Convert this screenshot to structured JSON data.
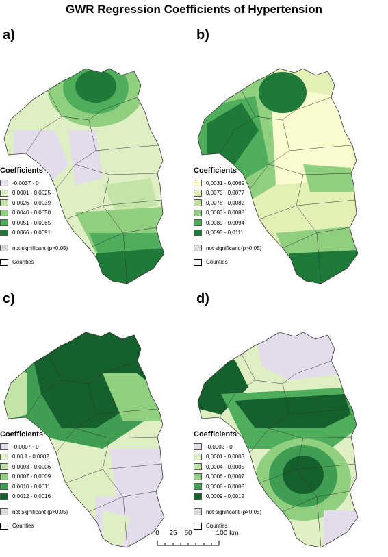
{
  "title": "GWR Regression Coefficients of Hypertension",
  "panels": [
    {
      "label": "a)",
      "legend_title": "Coefficients",
      "classes": [
        {
          "range": "-0,0037 - 0",
          "color": "#e2dcec"
        },
        {
          "range": "0,0001 - 0,0025",
          "color": "#dfefc4"
        },
        {
          "range": "0,0026 - 0,0039",
          "color": "#c3e4a6"
        },
        {
          "range": "0,0040 - 0,0050",
          "color": "#8fcf7f"
        },
        {
          "range": "0,0051 - 0,0065",
          "color": "#4eae5c"
        },
        {
          "range": "0,0066 - 0,0091",
          "color": "#1f7a3a"
        }
      ],
      "not_significant": "not significant (p>0.05)",
      "counties": "Counties"
    },
    {
      "label": "b)",
      "legend_title": "Coefficients",
      "classes": [
        {
          "range": "0,0031 - 0,0069",
          "color": "#fbfbd0"
        },
        {
          "range": "0,0070 - 0,0077",
          "color": "#e2f0b6"
        },
        {
          "range": "0,0078 - 0,0082",
          "color": "#c4e3a2"
        },
        {
          "range": "0,0083 - 0,0088",
          "color": "#8fcf7f"
        },
        {
          "range": "0,0089 - 0,0094",
          "color": "#4eae5c"
        },
        {
          "range": "0,0095 - 0,0111",
          "color": "#1f7a3a"
        }
      ],
      "not_significant": "not significant (p>0.05)",
      "counties": "Counties"
    },
    {
      "label": "c)",
      "legend_title": "Coefficients",
      "classes": [
        {
          "range": "-0.0007 - 0",
          "color": "#e2dcec"
        },
        {
          "range": "0,00.1 - 0,0002",
          "color": "#dfefc4"
        },
        {
          "range": "0,0003 - 0,0006",
          "color": "#c3e4a6"
        },
        {
          "range": "0,0007 - 0,0009",
          "color": "#8fcf7f"
        },
        {
          "range": "0,0010 - 0,0011",
          "color": "#3f9e52"
        },
        {
          "range": "0,0012 - 0,0016",
          "color": "#15602c"
        }
      ],
      "not_significant": "not significant (p>0.05)",
      "counties": "Counties"
    },
    {
      "label": "d)",
      "legend_title": "Coefficients",
      "classes": [
        {
          "range": "-0,0002 - 0",
          "color": "#e2dcec"
        },
        {
          "range": "0,0001 - 0,0003",
          "color": "#dfefc4"
        },
        {
          "range": "0,0004 - 0,0005",
          "color": "#c3e4a6"
        },
        {
          "range": "0,0006 - 0,0007",
          "color": "#8fcf7f"
        },
        {
          "range": "0,0008 - 0,0008",
          "color": "#3f9e52"
        },
        {
          "range": "0,0009 - 0,0012",
          "color": "#15602c"
        }
      ],
      "not_significant": "not significant (p>0.05)",
      "counties": "Counties"
    }
  ],
  "not_significant_color": "#d9d9d9",
  "scale": {
    "ticks": [
      "0",
      "25",
      "50",
      "100 km"
    ],
    "values_km": [
      0,
      25,
      50,
      100
    ],
    "max_km": 100
  }
}
